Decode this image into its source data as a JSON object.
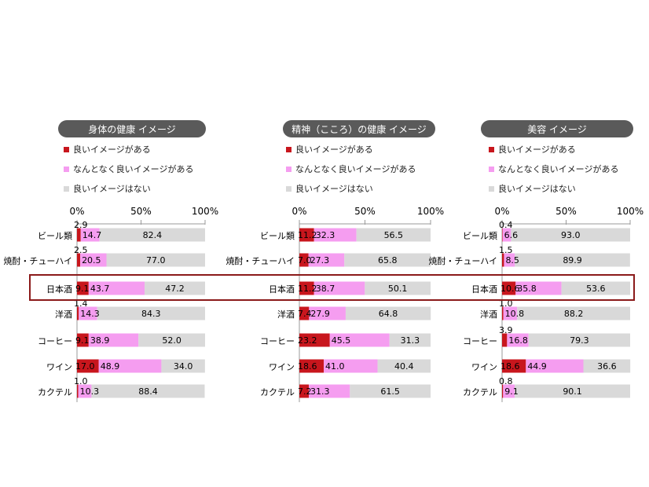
{
  "legend": {
    "good": "良いイメージがある",
    "somewhat": "なんとなく良いイメージがある",
    "none": "良いイメージはない"
  },
  "colors": {
    "good": "#c8161d",
    "somewhat": "#f59df0",
    "none": "#d9d9d9",
    "header": "#5a5a5a",
    "highlight": "#8b1a1a"
  },
  "chart_data": [
    {
      "type": "bar",
      "title": "身体の健康 イメージ",
      "categories": [
        "ビール類",
        "焼酎・チューハイ",
        "日本酒",
        "洋酒",
        "コーヒー",
        "ワイン",
        "カクテル"
      ],
      "ticks": [
        "0%",
        "50%",
        "100%"
      ],
      "xlim": [
        0,
        100
      ],
      "series": [
        {
          "name": "良いイメージがある",
          "values": [
            2.9,
            2.5,
            9.1,
            1.4,
            9.1,
            17.0,
            1.0
          ]
        },
        {
          "name": "なんとなく良いイメージがある",
          "values": [
            14.7,
            20.5,
            43.7,
            14.3,
            38.9,
            48.9,
            10.3
          ]
        },
        {
          "name": "良いイメージはない",
          "values": [
            82.4,
            77.0,
            47.2,
            84.3,
            52.0,
            34.0,
            88.4
          ]
        }
      ],
      "labels": [
        [
          "2.9",
          "14.7",
          "82.4"
        ],
        [
          "2.5",
          "20.5",
          "77.0"
        ],
        [
          "9.1",
          "43.7",
          "47.2"
        ],
        [
          "1.4",
          "14.3",
          "84.3"
        ],
        [
          "9.1",
          "38.9",
          "52.0"
        ],
        [
          "17.0",
          "48.9",
          "34.0"
        ],
        [
          "1.0",
          "10.3",
          "88.4"
        ]
      ]
    },
    {
      "type": "bar",
      "title": "精神（こころ）の健康 イメージ",
      "categories": [
        "ビール類",
        "焼酎・チューハイ",
        "日本酒",
        "洋酒",
        "コーヒー",
        "ワイン",
        "カクテル"
      ],
      "ticks": [
        "0%",
        "50%",
        "100%"
      ],
      "xlim": [
        0,
        100
      ],
      "series": [
        {
          "name": "良いイメージがある",
          "values": [
            11.2,
            7.0,
            11.2,
            7.4,
            23.2,
            18.6,
            7.2
          ]
        },
        {
          "name": "なんとなく良いイメージがある",
          "values": [
            32.3,
            27.3,
            38.7,
            27.9,
            45.5,
            41.0,
            31.3
          ]
        },
        {
          "name": "良いイメージはない",
          "values": [
            56.5,
            65.8,
            50.1,
            64.8,
            31.3,
            40.4,
            61.5
          ]
        }
      ],
      "labels": [
        [
          "11.2",
          "32.3",
          "56.5"
        ],
        [
          "7.0",
          "27.3",
          "65.8"
        ],
        [
          "11.2",
          "38.7",
          "50.1"
        ],
        [
          "7.4",
          "27.9",
          "64.8"
        ],
        [
          "23.2",
          "45.5",
          "31.3"
        ],
        [
          "18.6",
          "41.0",
          "40.4"
        ],
        [
          "7.2",
          "31.3",
          "61.5"
        ]
      ]
    },
    {
      "type": "bar",
      "title": "美容 イメージ",
      "categories": [
        "ビール類",
        "焼酎・チューハイ",
        "日本酒",
        "洋酒",
        "コーヒー",
        "ワイン",
        "カクテル"
      ],
      "ticks": [
        "0%",
        "50%",
        "100%"
      ],
      "xlim": [
        0,
        100
      ],
      "series": [
        {
          "name": "良いイメージがある",
          "values": [
            0.4,
            1.5,
            10.6,
            1.0,
            3.9,
            18.6,
            0.8
          ]
        },
        {
          "name": "なんとなく良いイメージがある",
          "values": [
            6.6,
            8.5,
            35.8,
            10.8,
            16.8,
            44.9,
            9.1
          ]
        },
        {
          "name": "良いイメージはない",
          "values": [
            93.0,
            89.9,
            53.6,
            88.2,
            79.3,
            36.6,
            90.1
          ]
        }
      ],
      "labels": [
        [
          "0.4",
          "6.6",
          "93.0"
        ],
        [
          "1.5",
          "8.5",
          "89.9"
        ],
        [
          "10.6",
          "35.8",
          "53.6"
        ],
        [
          "1.0",
          "10.8",
          "88.2"
        ],
        [
          "3.9",
          "16.8",
          "79.3"
        ],
        [
          "18.6",
          "44.9",
          "36.6"
        ],
        [
          "0.8",
          "9.1",
          "90.1"
        ]
      ]
    }
  ]
}
